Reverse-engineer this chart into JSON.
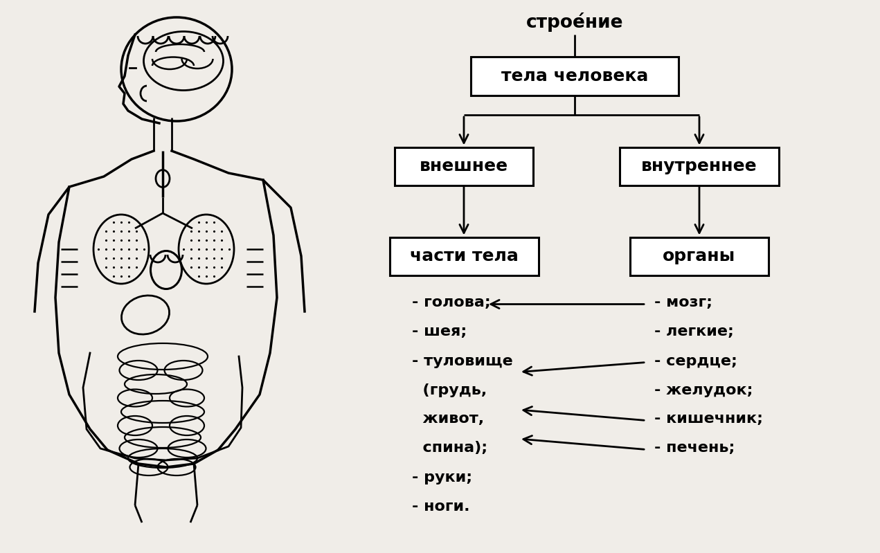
{
  "bg_color": "#f0ede8",
  "title_above": "строе́ние",
  "box_tela": "тела человека",
  "box_vnesh": "внешнее",
  "box_vnutr": "внутреннее",
  "box_chasti": "части тела",
  "box_organy": "органы",
  "chasti_lines": [
    "- голова;",
    "- шея;",
    "- туловище",
    "  (грудь,",
    "  живот,",
    "  спина);",
    "- руки;",
    "- ноги."
  ],
  "organy_lines": [
    "- мозг;",
    "- легкие;",
    "- сердце;",
    "- желудок;",
    "- кишечник;",
    "- печень;"
  ]
}
